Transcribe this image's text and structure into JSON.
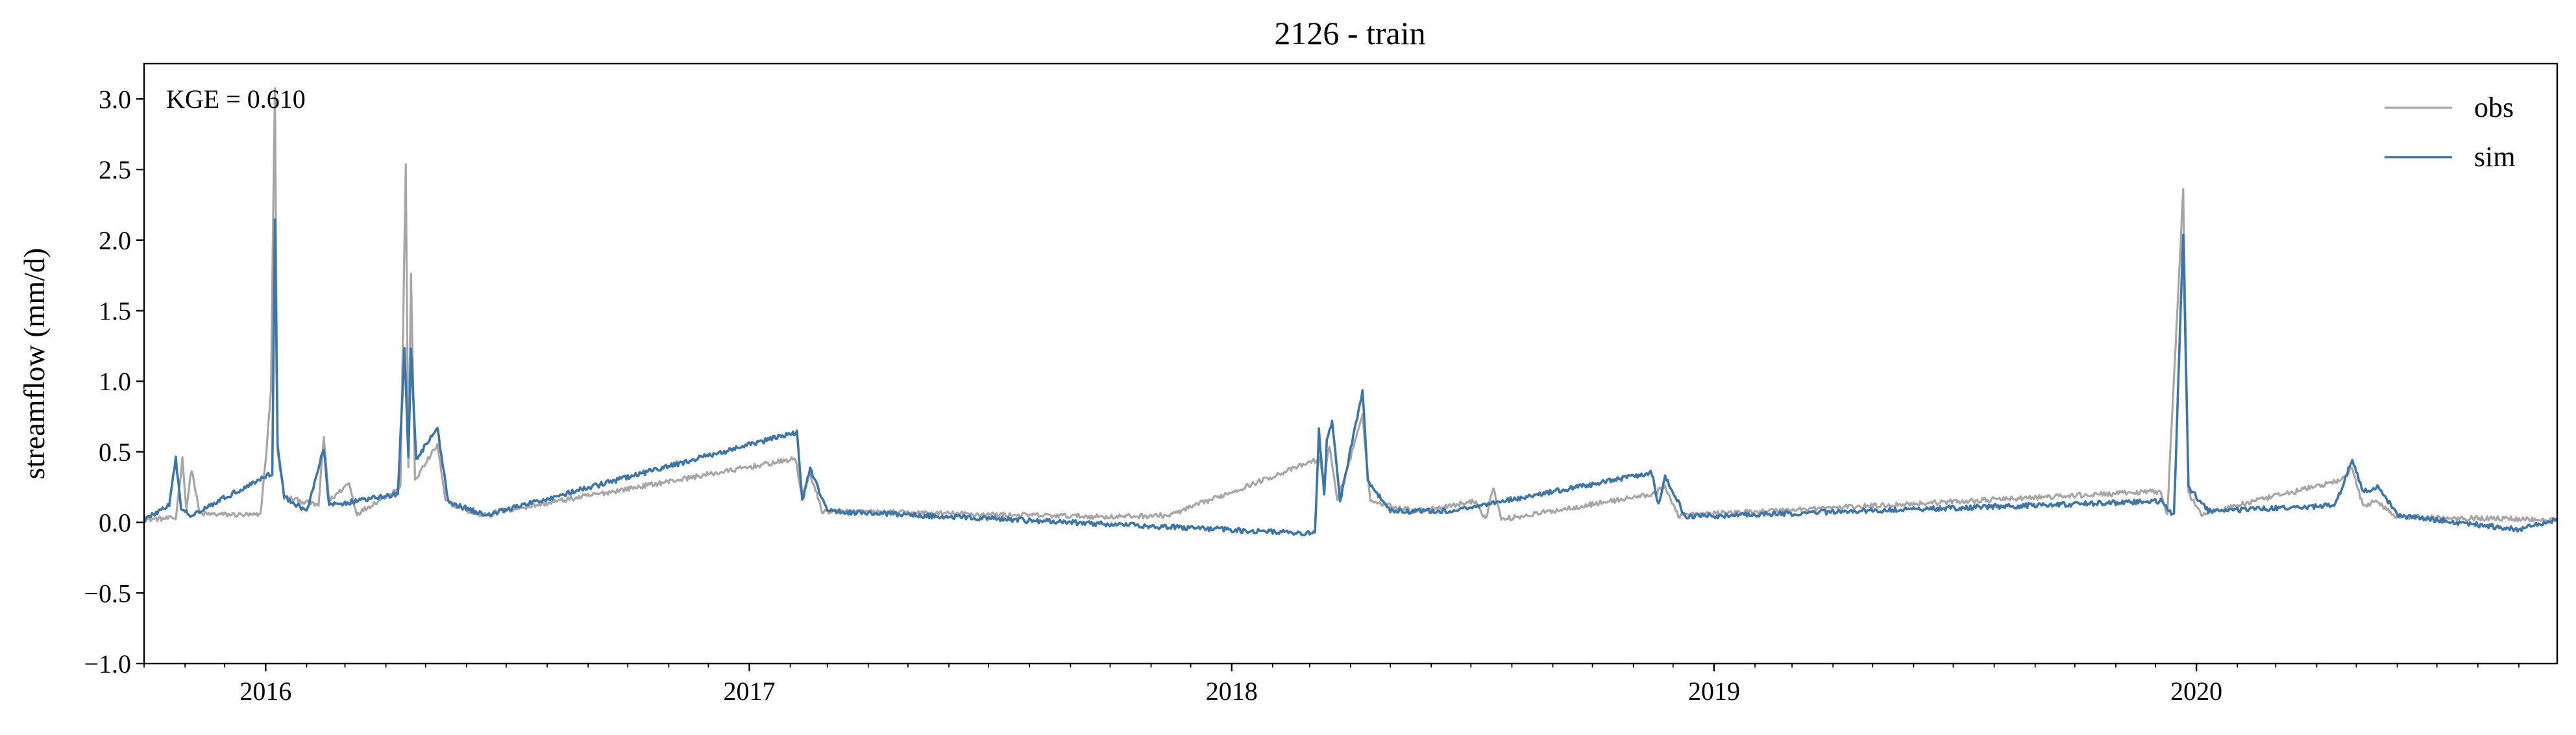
{
  "chart_data": {
    "type": "line",
    "title": "2126 - train",
    "xlabel": "",
    "ylabel": "streamflow (mm/d)",
    "annotation": "KGE = 0.610",
    "x_range": [
      "2015-10-01",
      "2020-09-30"
    ],
    "ylim": [
      -1.0,
      3.25
    ],
    "y_ticks": [
      "−1.0",
      "−0.5",
      "0.0",
      "0.5",
      "1.0",
      "1.5",
      "2.0",
      "2.5",
      "3.0"
    ],
    "y_tick_values": [
      -1.0,
      -0.5,
      0.0,
      0.5,
      1.0,
      1.5,
      2.0,
      2.5,
      3.0
    ],
    "x_ticks": [
      "2016",
      "2017",
      "2018",
      "2019",
      "2020"
    ],
    "x_tick_dates": [
      "2016-01-01",
      "2017-01-01",
      "2018-01-01",
      "2019-01-01",
      "2020-01-01"
    ],
    "grid": false,
    "legend_position": "top-right",
    "series": [
      {
        "name": "obs",
        "color": "#a6a6a6",
        "baseline": 0.02,
        "points": [
          [
            "2015-10-01",
            0.02
          ],
          [
            "2015-10-25",
            0.03
          ],
          [
            "2015-10-30",
            0.45
          ],
          [
            "2015-11-02",
            0.1
          ],
          [
            "2015-11-06",
            0.38
          ],
          [
            "2015-11-12",
            0.06
          ],
          [
            "2015-12-28",
            0.05
          ],
          [
            "2016-01-02",
            0.55
          ],
          [
            "2016-01-05",
            0.95
          ],
          [
            "2016-01-08",
            3.08
          ],
          [
            "2016-01-10",
            0.5
          ],
          [
            "2016-01-15",
            0.18
          ],
          [
            "2016-02-10",
            0.12
          ],
          [
            "2016-02-14",
            0.6
          ],
          [
            "2016-02-18",
            0.15
          ],
          [
            "2016-03-04",
            0.28
          ],
          [
            "2016-03-10",
            0.06
          ],
          [
            "2016-04-12",
            0.25
          ],
          [
            "2016-04-16",
            2.52
          ],
          [
            "2016-04-18",
            0.4
          ],
          [
            "2016-04-20",
            1.75
          ],
          [
            "2016-04-23",
            0.3
          ],
          [
            "2016-05-10",
            0.55
          ],
          [
            "2016-05-16",
            0.15
          ],
          [
            "2016-06-10",
            0.05
          ],
          [
            "2017-02-05",
            0.45
          ],
          [
            "2017-02-10",
            0.18
          ],
          [
            "2017-02-16",
            0.35
          ],
          [
            "2017-02-25",
            0.08
          ],
          [
            "2017-10-01",
            0.04
          ],
          [
            "2017-11-15",
            0.05
          ],
          [
            "2018-03-08",
            0.45
          ],
          [
            "2018-03-12",
            0.3
          ],
          [
            "2018-03-16",
            0.55
          ],
          [
            "2018-03-22",
            0.15
          ],
          [
            "2018-04-10",
            0.75
          ],
          [
            "2018-04-16",
            0.15
          ],
          [
            "2018-05-20",
            0.08
          ],
          [
            "2018-07-05",
            0.15
          ],
          [
            "2018-07-12",
            0.02
          ],
          [
            "2018-07-18",
            0.25
          ],
          [
            "2018-07-24",
            0.02
          ],
          [
            "2018-11-15",
            0.2
          ],
          [
            "2018-11-25",
            0.25
          ],
          [
            "2018-12-05",
            0.05
          ],
          [
            "2019-12-05",
            0.22
          ],
          [
            "2019-12-10",
            0.06
          ],
          [
            "2019-12-22",
            2.35
          ],
          [
            "2019-12-26",
            0.2
          ],
          [
            "2020-01-05",
            0.06
          ],
          [
            "2020-04-20",
            0.3
          ],
          [
            "2020-04-28",
            0.38
          ],
          [
            "2020-05-06",
            0.12
          ],
          [
            "2020-05-16",
            0.15
          ],
          [
            "2020-06-01",
            0.04
          ],
          [
            "2020-09-30",
            0.02
          ]
        ]
      },
      {
        "name": "sim",
        "color": "#3a76ac",
        "baseline": 0.02,
        "points": [
          [
            "2015-10-01",
            0.02
          ],
          [
            "2015-10-20",
            0.12
          ],
          [
            "2015-10-25",
            0.45
          ],
          [
            "2015-10-29",
            0.1
          ],
          [
            "2015-11-05",
            0.05
          ],
          [
            "2016-01-06",
            0.35
          ],
          [
            "2016-01-08",
            2.15
          ],
          [
            "2016-01-10",
            0.55
          ],
          [
            "2016-01-15",
            0.18
          ],
          [
            "2016-02-01",
            0.08
          ],
          [
            "2016-02-14",
            0.52
          ],
          [
            "2016-02-18",
            0.12
          ],
          [
            "2016-04-10",
            0.2
          ],
          [
            "2016-04-15",
            1.22
          ],
          [
            "2016-04-18",
            0.45
          ],
          [
            "2016-04-20",
            1.22
          ],
          [
            "2016-04-24",
            0.45
          ],
          [
            "2016-05-10",
            0.67
          ],
          [
            "2016-05-18",
            0.15
          ],
          [
            "2016-06-15",
            0.05
          ],
          [
            "2017-02-06",
            0.64
          ],
          [
            "2017-02-10",
            0.15
          ],
          [
            "2017-02-16",
            0.38
          ],
          [
            "2017-03-01",
            0.08
          ],
          [
            "2018-03-05",
            -0.08
          ],
          [
            "2018-03-08",
            0.65
          ],
          [
            "2018-03-12",
            0.2
          ],
          [
            "2018-03-14",
            0.58
          ],
          [
            "2018-03-18",
            0.72
          ],
          [
            "2018-03-24",
            0.15
          ],
          [
            "2018-04-10",
            0.93
          ],
          [
            "2018-04-14",
            0.3
          ],
          [
            "2018-05-01",
            0.08
          ],
          [
            "2018-06-15",
            0.08
          ],
          [
            "2018-11-15",
            0.35
          ],
          [
            "2018-11-20",
            0.12
          ],
          [
            "2018-11-25",
            0.32
          ],
          [
            "2018-12-01",
            0.22
          ],
          [
            "2018-12-10",
            0.04
          ],
          [
            "2019-12-05",
            0.15
          ],
          [
            "2019-12-15",
            0.05
          ],
          [
            "2019-12-22",
            2.05
          ],
          [
            "2019-12-26",
            0.25
          ],
          [
            "2020-01-10",
            0.08
          ],
          [
            "2020-04-15",
            0.12
          ],
          [
            "2020-04-28",
            0.45
          ],
          [
            "2020-05-06",
            0.22
          ],
          [
            "2020-05-18",
            0.25
          ],
          [
            "2020-06-01",
            0.05
          ],
          [
            "2020-09-01",
            -0.05
          ],
          [
            "2020-09-30",
            0.02
          ]
        ]
      }
    ]
  }
}
